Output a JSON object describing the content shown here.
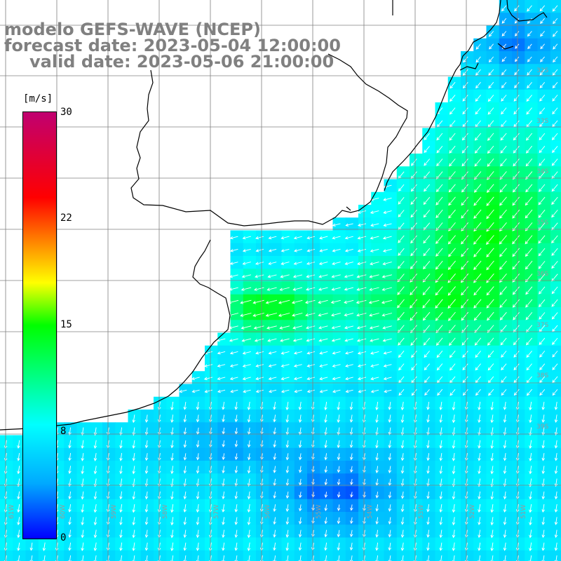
{
  "title": {
    "line1": "modelo GEFS-WAVE (NCEP)",
    "line2": "forecast date: 2023-05-04 12:00:00",
    "line3": "valid date: 2023-05-06 21:00:00"
  },
  "colorbar": {
    "unit": "[m/s]",
    "ticks": [
      "30",
      "22",
      "15",
      "8",
      "0"
    ],
    "tick_values": [
      30,
      22,
      15,
      8,
      0
    ],
    "range": [
      0,
      30
    ],
    "stops": [
      {
        "v": 0,
        "color": "#0000ff"
      },
      {
        "v": 4,
        "color": "#00aaff"
      },
      {
        "v": 8,
        "color": "#00ffff"
      },
      {
        "v": 15,
        "color": "#00ff00"
      },
      {
        "v": 18,
        "color": "#ffff00"
      },
      {
        "v": 21,
        "color": "#ff8000"
      },
      {
        "v": 24,
        "color": "#ff0000"
      },
      {
        "v": 30,
        "color": "#c00070"
      }
    ]
  },
  "grid_labels": {
    "lon": [
      "61W",
      "60W",
      "59W",
      "58W",
      "57W",
      "56W",
      "55W",
      "54W",
      "53W",
      "52W",
      "51W"
    ],
    "lat": [
      "32S",
      "33S",
      "34S",
      "35S",
      "36S",
      "37S",
      "38S",
      "39S"
    ]
  },
  "colors": {
    "land": "#ffffff",
    "coast": "#000000",
    "grid": "#808080",
    "arrows": "#ffffff",
    "title": "#808080"
  }
}
